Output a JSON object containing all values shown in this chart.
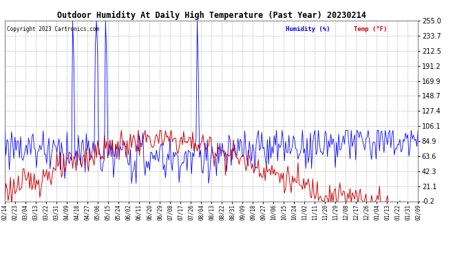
{
  "title": "Outdoor Humidity At Daily High Temperature (Past Year) 20230214",
  "copyright_text": "Copyright 2023 Cartronics.com",
  "legend_humidity": "Humidity (%)",
  "legend_temp": "Temp (°F)",
  "humidity_color": "#0000ff",
  "temp_color": "#cc0000",
  "background_color": "#ffffff",
  "plot_bg_color": "#ffffff",
  "grid_color": "#bbbbbb",
  "ylim_min": -0.2,
  "ylim_max": 255.0,
  "yticks": [
    255.0,
    233.7,
    212.5,
    191.2,
    169.9,
    148.7,
    127.4,
    106.1,
    84.9,
    63.6,
    42.3,
    21.1,
    -0.2
  ],
  "x_labels": [
    "02/14",
    "02/23",
    "03/04",
    "03/13",
    "03/22",
    "03/31",
    "04/09",
    "04/18",
    "04/27",
    "05/06",
    "05/15",
    "05/24",
    "06/02",
    "06/11",
    "06/20",
    "06/29",
    "07/08",
    "07/17",
    "07/26",
    "08/04",
    "08/13",
    "08/22",
    "08/31",
    "09/09",
    "09/18",
    "09/27",
    "10/06",
    "10/15",
    "10/24",
    "11/02",
    "11/11",
    "11/20",
    "11/29",
    "12/08",
    "12/17",
    "12/26",
    "01/04",
    "01/13",
    "01/22",
    "01/31",
    "02/09"
  ],
  "figwidth": 6.9,
  "figheight": 3.75,
  "dpi": 100
}
